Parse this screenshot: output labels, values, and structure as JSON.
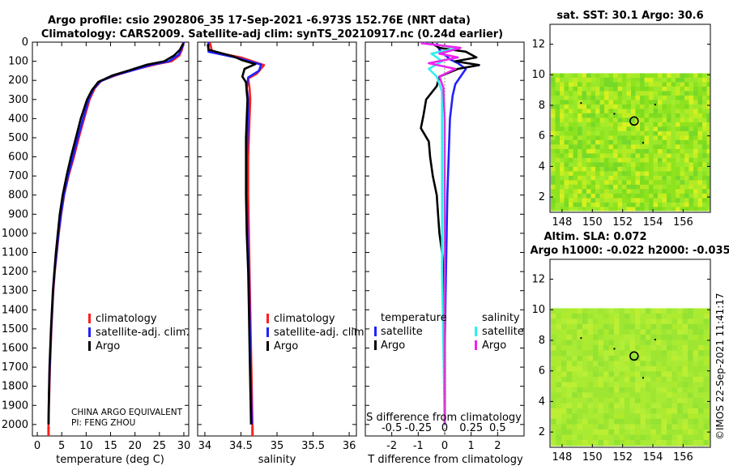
{
  "figure": {
    "title_line1": "Argo profile: csio 2902806_35 17-Sep-2021 -6.973S 152.76E (NRT data)",
    "title_line2": "Climatology: CARS2009. Satellite-adj clim: synTS_20210917.nc (0.24d earlier)",
    "footer_stamp": "©IMOS 22-Sep-2021 11:41:17",
    "pi_line1": "CHINA ARGO EQUIVALENT",
    "pi_line2": "PI: FENG ZHOU"
  },
  "colors": {
    "climatology": "#ff1f1f",
    "satellite_adj": "#2020ff",
    "argo": "#000000",
    "temp_satellite": "#2020ff",
    "temp_argo": "#000000",
    "sal_satellite": "#33eeee",
    "sal_argo": "#ee22ee",
    "map_sst": "#8ee21e",
    "map_sla": "#9ee632"
  },
  "chart_data": [
    {
      "id": "temperature",
      "type": "line",
      "xlabel": "temperature (deg C)",
      "ylabel": "",
      "xlim": [
        -1,
        31
      ],
      "ylim": [
        2060,
        0
      ],
      "xticks": [
        0,
        5,
        10,
        15,
        20,
        25,
        30
      ],
      "yticks": [
        0,
        100,
        200,
        300,
        400,
        500,
        600,
        700,
        800,
        900,
        1000,
        1100,
        1200,
        1300,
        1400,
        1500,
        1600,
        1700,
        1800,
        1900,
        2000
      ],
      "legend": [
        "climatology",
        "satellite-adj. clim.",
        "Argo"
      ],
      "series": [
        {
          "name": "climatology",
          "color_key": "climatology",
          "points": [
            [
              30.0,
              0
            ],
            [
              29.6,
              40
            ],
            [
              29.1,
              70
            ],
            [
              27.5,
              100
            ],
            [
              24.5,
              115
            ],
            [
              20.5,
              140
            ],
            [
              16.5,
              170
            ],
            [
              13.2,
              200
            ],
            [
              11.8,
              240
            ],
            [
              10.7,
              300
            ],
            [
              9.6,
              400
            ],
            [
              8.5,
              500
            ],
            [
              7.5,
              600
            ],
            [
              6.4,
              700
            ],
            [
              5.5,
              800
            ],
            [
              4.9,
              900
            ],
            [
              4.4,
              1000
            ],
            [
              4.0,
              1100
            ],
            [
              3.6,
              1200
            ],
            [
              3.3,
              1300
            ],
            [
              3.1,
              1400
            ],
            [
              2.9,
              1500
            ],
            [
              2.75,
              1600
            ],
            [
              2.6,
              1700
            ],
            [
              2.5,
              1800
            ],
            [
              2.4,
              1900
            ],
            [
              2.3,
              2000
            ],
            [
              2.3,
              2050
            ]
          ]
        },
        {
          "name": "satellite-adj. clim.",
          "color_key": "satellite_adj",
          "points": [
            [
              30.0,
              0
            ],
            [
              29.5,
              35
            ],
            [
              29.0,
              65
            ],
            [
              27.0,
              100
            ],
            [
              23.5,
              118
            ],
            [
              19.8,
              145
            ],
            [
              16.0,
              172
            ],
            [
              12.9,
              205
            ],
            [
              11.5,
              245
            ],
            [
              10.5,
              300
            ],
            [
              9.4,
              400
            ],
            [
              8.3,
              500
            ],
            [
              7.3,
              600
            ],
            [
              6.3,
              700
            ],
            [
              5.45,
              800
            ],
            [
              4.85,
              900
            ],
            [
              4.35,
              1000
            ],
            [
              3.95,
              1100
            ],
            [
              3.55,
              1200
            ],
            [
              3.25,
              1300
            ],
            [
              3.05,
              1400
            ],
            [
              2.85,
              1500
            ],
            [
              2.7,
              1600
            ],
            [
              2.55,
              1700
            ],
            [
              2.45,
              1800
            ],
            [
              2.35,
              1900
            ],
            [
              2.3,
              2000
            ]
          ]
        },
        {
          "name": "Argo",
          "color_key": "argo",
          "points": [
            [
              29.9,
              5
            ],
            [
              29.2,
              40
            ],
            [
              28.0,
              70
            ],
            [
              26.0,
              100
            ],
            [
              22.5,
              118
            ],
            [
              18.8,
              148
            ],
            [
              15.3,
              175
            ],
            [
              12.5,
              208
            ],
            [
              11.2,
              250
            ],
            [
              10.2,
              300
            ],
            [
              8.9,
              400
            ],
            [
              7.9,
              500
            ],
            [
              6.9,
              600
            ],
            [
              6.0,
              700
            ],
            [
              5.2,
              800
            ],
            [
              4.6,
              900
            ],
            [
              4.2,
              1000
            ],
            [
              3.8,
              1100
            ],
            [
              3.5,
              1200
            ],
            [
              3.2,
              1300
            ],
            [
              3.0,
              1400
            ],
            [
              2.8,
              1500
            ],
            [
              2.65,
              1600
            ],
            [
              2.5,
              1700
            ],
            [
              2.42,
              1800
            ],
            [
              2.35,
              1900
            ],
            [
              2.3,
              2000
            ]
          ]
        }
      ]
    },
    {
      "id": "salinity",
      "type": "line",
      "xlabel": "salinity",
      "xlim": [
        33.9,
        36.1
      ],
      "ylim": [
        2060,
        0
      ],
      "xticks": [
        34,
        34.5,
        35,
        35.5,
        36
      ],
      "legend": [
        "climatology",
        "satellite-adj. clim.",
        "Argo"
      ],
      "series": [
        {
          "name": "climatology",
          "color_key": "climatology",
          "points": [
            [
              34.07,
              0
            ],
            [
              34.1,
              50
            ],
            [
              34.5,
              80
            ],
            [
              34.82,
              120
            ],
            [
              34.72,
              165
            ],
            [
              34.6,
              190
            ],
            [
              34.62,
              240
            ],
            [
              34.63,
              300
            ],
            [
              34.62,
              400
            ],
            [
              34.61,
              500
            ],
            [
              34.6,
              600
            ],
            [
              34.6,
              800
            ],
            [
              34.61,
              1000
            ],
            [
              34.62,
              1200
            ],
            [
              34.63,
              1400
            ],
            [
              34.64,
              1600
            ],
            [
              34.65,
              1800
            ],
            [
              34.66,
              2000
            ],
            [
              34.66,
              2050
            ]
          ]
        },
        {
          "name": "satellite-adj. clim.",
          "color_key": "satellite_adj",
          "points": [
            [
              34.05,
              0
            ],
            [
              34.05,
              50
            ],
            [
              34.45,
              82
            ],
            [
              34.78,
              118
            ],
            [
              34.75,
              150
            ],
            [
              34.6,
              185
            ],
            [
              34.58,
              240
            ],
            [
              34.6,
              300
            ],
            [
              34.6,
              400
            ],
            [
              34.59,
              500
            ],
            [
              34.58,
              600
            ],
            [
              34.58,
              800
            ],
            [
              34.59,
              1000
            ],
            [
              34.61,
              1200
            ],
            [
              34.62,
              1400
            ],
            [
              34.63,
              1600
            ],
            [
              34.64,
              1800
            ],
            [
              34.65,
              2000
            ]
          ]
        },
        {
          "name": "Argo",
          "color_key": "argo",
          "points": [
            [
              34.04,
              10
            ],
            [
              34.05,
              40
            ],
            [
              34.4,
              75
            ],
            [
              34.52,
              95
            ],
            [
              34.7,
              115
            ],
            [
              34.55,
              140
            ],
            [
              34.52,
              180
            ],
            [
              34.57,
              210
            ],
            [
              34.58,
              260
            ],
            [
              34.59,
              300
            ],
            [
              34.58,
              400
            ],
            [
              34.57,
              500
            ],
            [
              34.57,
              600
            ],
            [
              34.57,
              800
            ],
            [
              34.58,
              1000
            ],
            [
              34.6,
              1200
            ],
            [
              34.61,
              1400
            ],
            [
              34.62,
              1600
            ],
            [
              34.63,
              1800
            ],
            [
              34.64,
              2000
            ]
          ]
        }
      ]
    },
    {
      "id": "differences",
      "type": "line",
      "xlabel": "T difference from climatology",
      "xlabel_top": "S difference from climatology",
      "xlim": [
        -3,
        3
      ],
      "ylim": [
        2060,
        0
      ],
      "xticks": [
        -2,
        -1,
        0,
        1,
        2
      ],
      "s_ticks": [
        {
          "label": "-0.5",
          "x": -2
        },
        {
          "label": "-0.25",
          "x": -1
        },
        {
          "label": "0",
          "x": 0
        },
        {
          "label": "0.25",
          "x": 1
        },
        {
          "label": "0.5",
          "x": 2
        }
      ],
      "legend_temperature": {
        "title": "temperature",
        "items": [
          "satellite",
          "Argo"
        ]
      },
      "legend_salinity": {
        "title": "salinity",
        "items": [
          "satellite",
          "Argo"
        ]
      },
      "series": [
        {
          "name": "temperature satellite",
          "color_key": "temp_satellite",
          "points": [
            [
              -0.3,
              5
            ],
            [
              -0.2,
              40
            ],
            [
              0.2,
              90
            ],
            [
              0.5,
              110
            ],
            [
              0.8,
              140
            ],
            [
              0.6,
              180
            ],
            [
              0.4,
              220
            ],
            [
              0.3,
              280
            ],
            [
              0.2,
              400
            ],
            [
              0.15,
              600
            ],
            [
              0.1,
              800
            ],
            [
              0.05,
              1200
            ],
            [
              0.0,
              1600
            ],
            [
              0.0,
              2000
            ]
          ]
        },
        {
          "name": "temperature Argo",
          "color_key": "temp_argo",
          "points": [
            [
              -0.5,
              5
            ],
            [
              -0.2,
              30
            ],
            [
              0.8,
              50
            ],
            [
              1.2,
              80
            ],
            [
              0.4,
              100
            ],
            [
              1.3,
              120
            ],
            [
              0.5,
              140
            ],
            [
              -0.2,
              180
            ],
            [
              -0.3,
              230
            ],
            [
              -0.7,
              300
            ],
            [
              -0.8,
              380
            ],
            [
              -0.9,
              450
            ],
            [
              -0.6,
              520
            ],
            [
              -0.55,
              600
            ],
            [
              -0.45,
              700
            ],
            [
              -0.3,
              800
            ],
            [
              -0.25,
              900
            ],
            [
              -0.2,
              1000
            ],
            [
              -0.1,
              1100
            ],
            [
              -0.05,
              1200
            ],
            [
              0.0,
              1400
            ],
            [
              0.0,
              2000
            ]
          ]
        },
        {
          "name": "salinity satellite",
          "color_key": "sal_satellite",
          "points": [
            [
              -0.8,
              5
            ],
            [
              0.5,
              30
            ],
            [
              -0.5,
              60
            ],
            [
              -0.1,
              100
            ],
            [
              -0.6,
              140
            ],
            [
              -0.3,
              180
            ],
            [
              -0.1,
              260
            ],
            [
              -0.1,
              400
            ],
            [
              -0.1,
              800
            ],
            [
              -0.1,
              1200
            ],
            [
              -0.05,
              1600
            ],
            [
              0.0,
              2000
            ]
          ]
        },
        {
          "name": "salinity Argo",
          "color_key": "sal_argo",
          "points": [
            [
              -0.9,
              5
            ],
            [
              0.6,
              30
            ],
            [
              -0.2,
              60
            ],
            [
              0.5,
              80
            ],
            [
              -0.6,
              110
            ],
            [
              0.4,
              140
            ],
            [
              -0.2,
              180
            ],
            [
              -0.05,
              240
            ],
            [
              0.0,
              400
            ],
            [
              0.0,
              800
            ],
            [
              0.0,
              1200
            ],
            [
              0.0,
              2000
            ]
          ]
        }
      ]
    },
    {
      "id": "sst_map",
      "type": "heatmap",
      "title": "sat. SST: 30.1 Argo: 30.6",
      "xlim": [
        147.2,
        157.8
      ],
      "ylim": [
        1,
        13.3
      ],
      "data_ylim": [
        1.1,
        10.1
      ],
      "xticks": [
        148,
        150,
        152,
        154,
        156
      ],
      "yticks": [
        2,
        4,
        6,
        8,
        10,
        12
      ],
      "argo_position": [
        152.76,
        6.973
      ]
    },
    {
      "id": "sla_map",
      "type": "heatmap",
      "title_line1": "Altim. SLA: 0.072",
      "title_line2": "Argo h1000: -0.022 h2000: -0.035",
      "xlim": [
        147.2,
        157.8
      ],
      "ylim": [
        1,
        13.3
      ],
      "data_ylim": [
        1.1,
        10.1
      ],
      "xticks": [
        148,
        150,
        152,
        154,
        156
      ],
      "yticks": [
        2,
        4,
        6,
        8,
        10,
        12
      ],
      "argo_position": [
        152.76,
        6.973
      ]
    }
  ]
}
